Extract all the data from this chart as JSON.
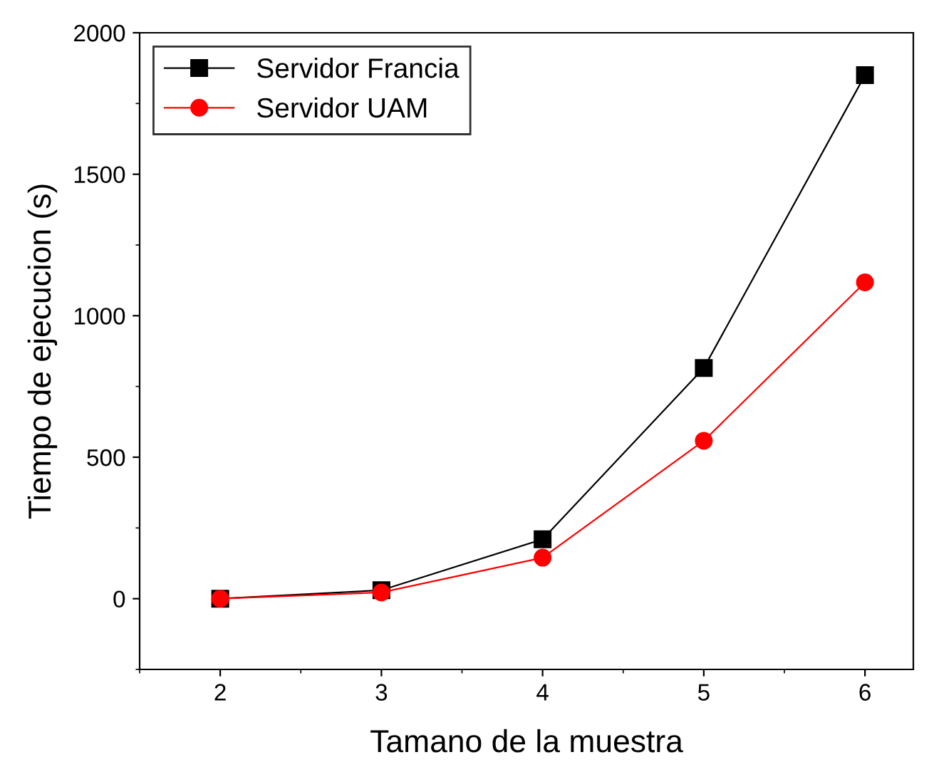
{
  "chart_data": {
    "type": "line",
    "xlabel": "Tamano de la muestra",
    "ylabel": "Tiempo de ejecucion (s)",
    "x": [
      2,
      3,
      4,
      5,
      6
    ],
    "series": [
      {
        "name": "Servidor Francia",
        "color": "#000000",
        "marker": "square",
        "values": [
          0,
          30,
          210,
          815,
          1850
        ]
      },
      {
        "name": "Servidor UAM",
        "color": "#ff0000",
        "marker": "circle",
        "values": [
          0,
          22,
          145,
          558,
          1118
        ]
      }
    ],
    "xlim": [
      1.5,
      6.3
    ],
    "xticks": [
      2,
      3,
      4,
      5,
      6
    ],
    "ylim": [
      -250,
      2000
    ],
    "yticks": [
      0,
      500,
      1000,
      1500,
      2000
    ],
    "grid": false,
    "legend": "top left",
    "line_style": "solid"
  }
}
